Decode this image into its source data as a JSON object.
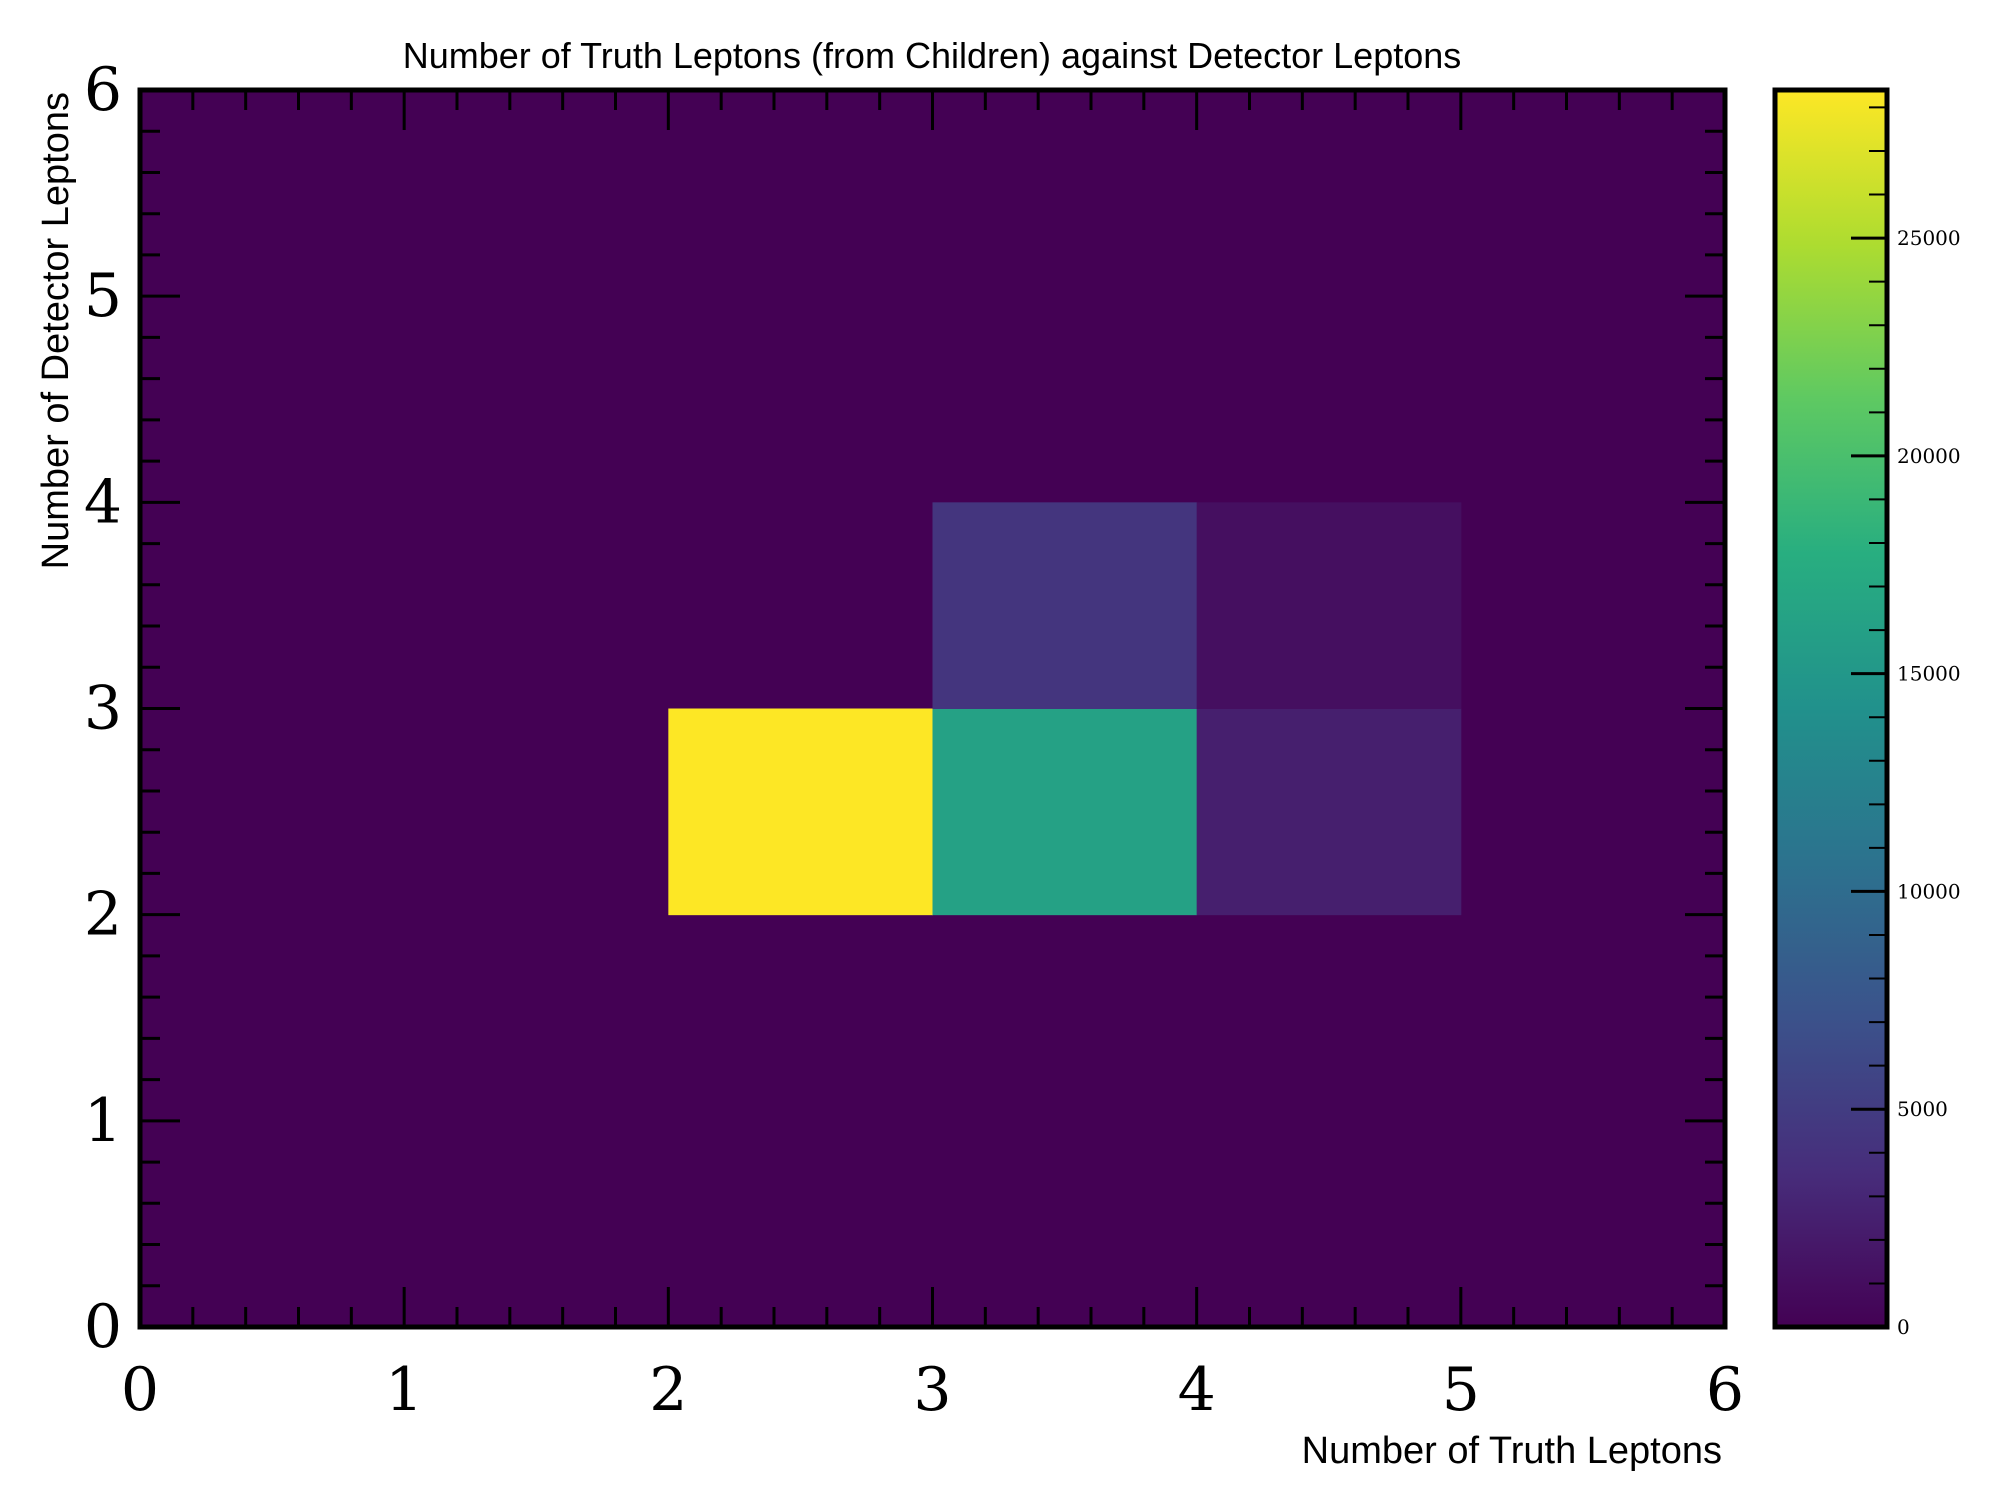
{
  "chart_data": {
    "type": "heatmap",
    "title": "Number of Truth Leptons (from Children) against Detector Leptons",
    "xlabel": "Number of Truth Leptons",
    "ylabel": "Number of Detector Leptons",
    "xlim": [
      0,
      6
    ],
    "ylim": [
      0,
      6
    ],
    "x_ticks": [
      "0",
      "1",
      "2",
      "3",
      "4",
      "5",
      "6"
    ],
    "y_ticks": [
      "0",
      "1",
      "2",
      "3",
      "4",
      "5",
      "6"
    ],
    "colormap": "viridis",
    "colorbar": {
      "min": 0,
      "max": 28400,
      "ticks": [
        "0",
        "5000",
        "10000",
        "15000",
        "20000",
        "25000"
      ]
    },
    "cells": [
      {
        "x": [
          2,
          3
        ],
        "y": [
          2,
          3
        ],
        "value": 28400
      },
      {
        "x": [
          3,
          4
        ],
        "y": [
          2,
          3
        ],
        "value": 16200
      },
      {
        "x": [
          4,
          5
        ],
        "y": [
          2,
          3
        ],
        "value": 2400
      },
      {
        "x": [
          3,
          4
        ],
        "y": [
          3,
          4
        ],
        "value": 4300
      },
      {
        "x": [
          4,
          5
        ],
        "y": [
          3,
          4
        ],
        "value": 1100
      }
    ],
    "grid": false
  }
}
